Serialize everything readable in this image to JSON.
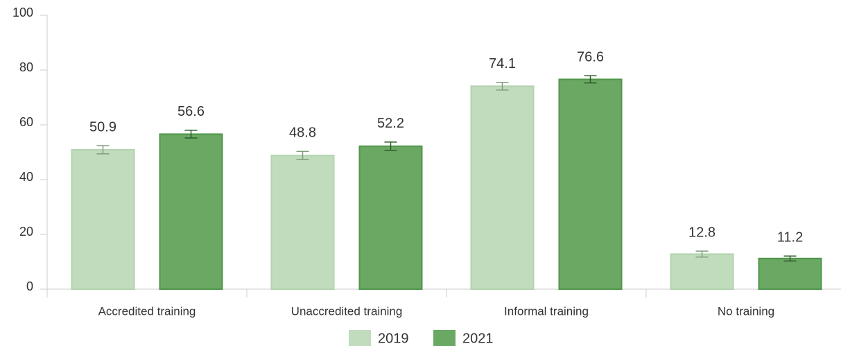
{
  "chart_data": {
    "type": "bar",
    "categories": [
      "Accredited training",
      "Unaccredited training",
      "Informal training",
      "No training"
    ],
    "series": [
      {
        "name": "2019",
        "color": "#c0dcbd",
        "edge": "#b2d3ae",
        "error_color": "#7f9d7c",
        "values": [
          50.9,
          48.8,
          74.1,
          12.8
        ],
        "errors": [
          1.5,
          1.5,
          1.4,
          1.1
        ]
      },
      {
        "name": "2021",
        "color": "#6aa864",
        "edge": "#4f9649",
        "error_color": "#2f5a2c",
        "values": [
          56.6,
          52.2,
          76.6,
          11.2
        ],
        "errors": [
          1.4,
          1.5,
          1.3,
          0.9
        ]
      }
    ],
    "ylim": [
      0,
      100
    ],
    "yticks": [
      0,
      20,
      40,
      60,
      80,
      100
    ],
    "grid": false,
    "legend": "bottom"
  }
}
